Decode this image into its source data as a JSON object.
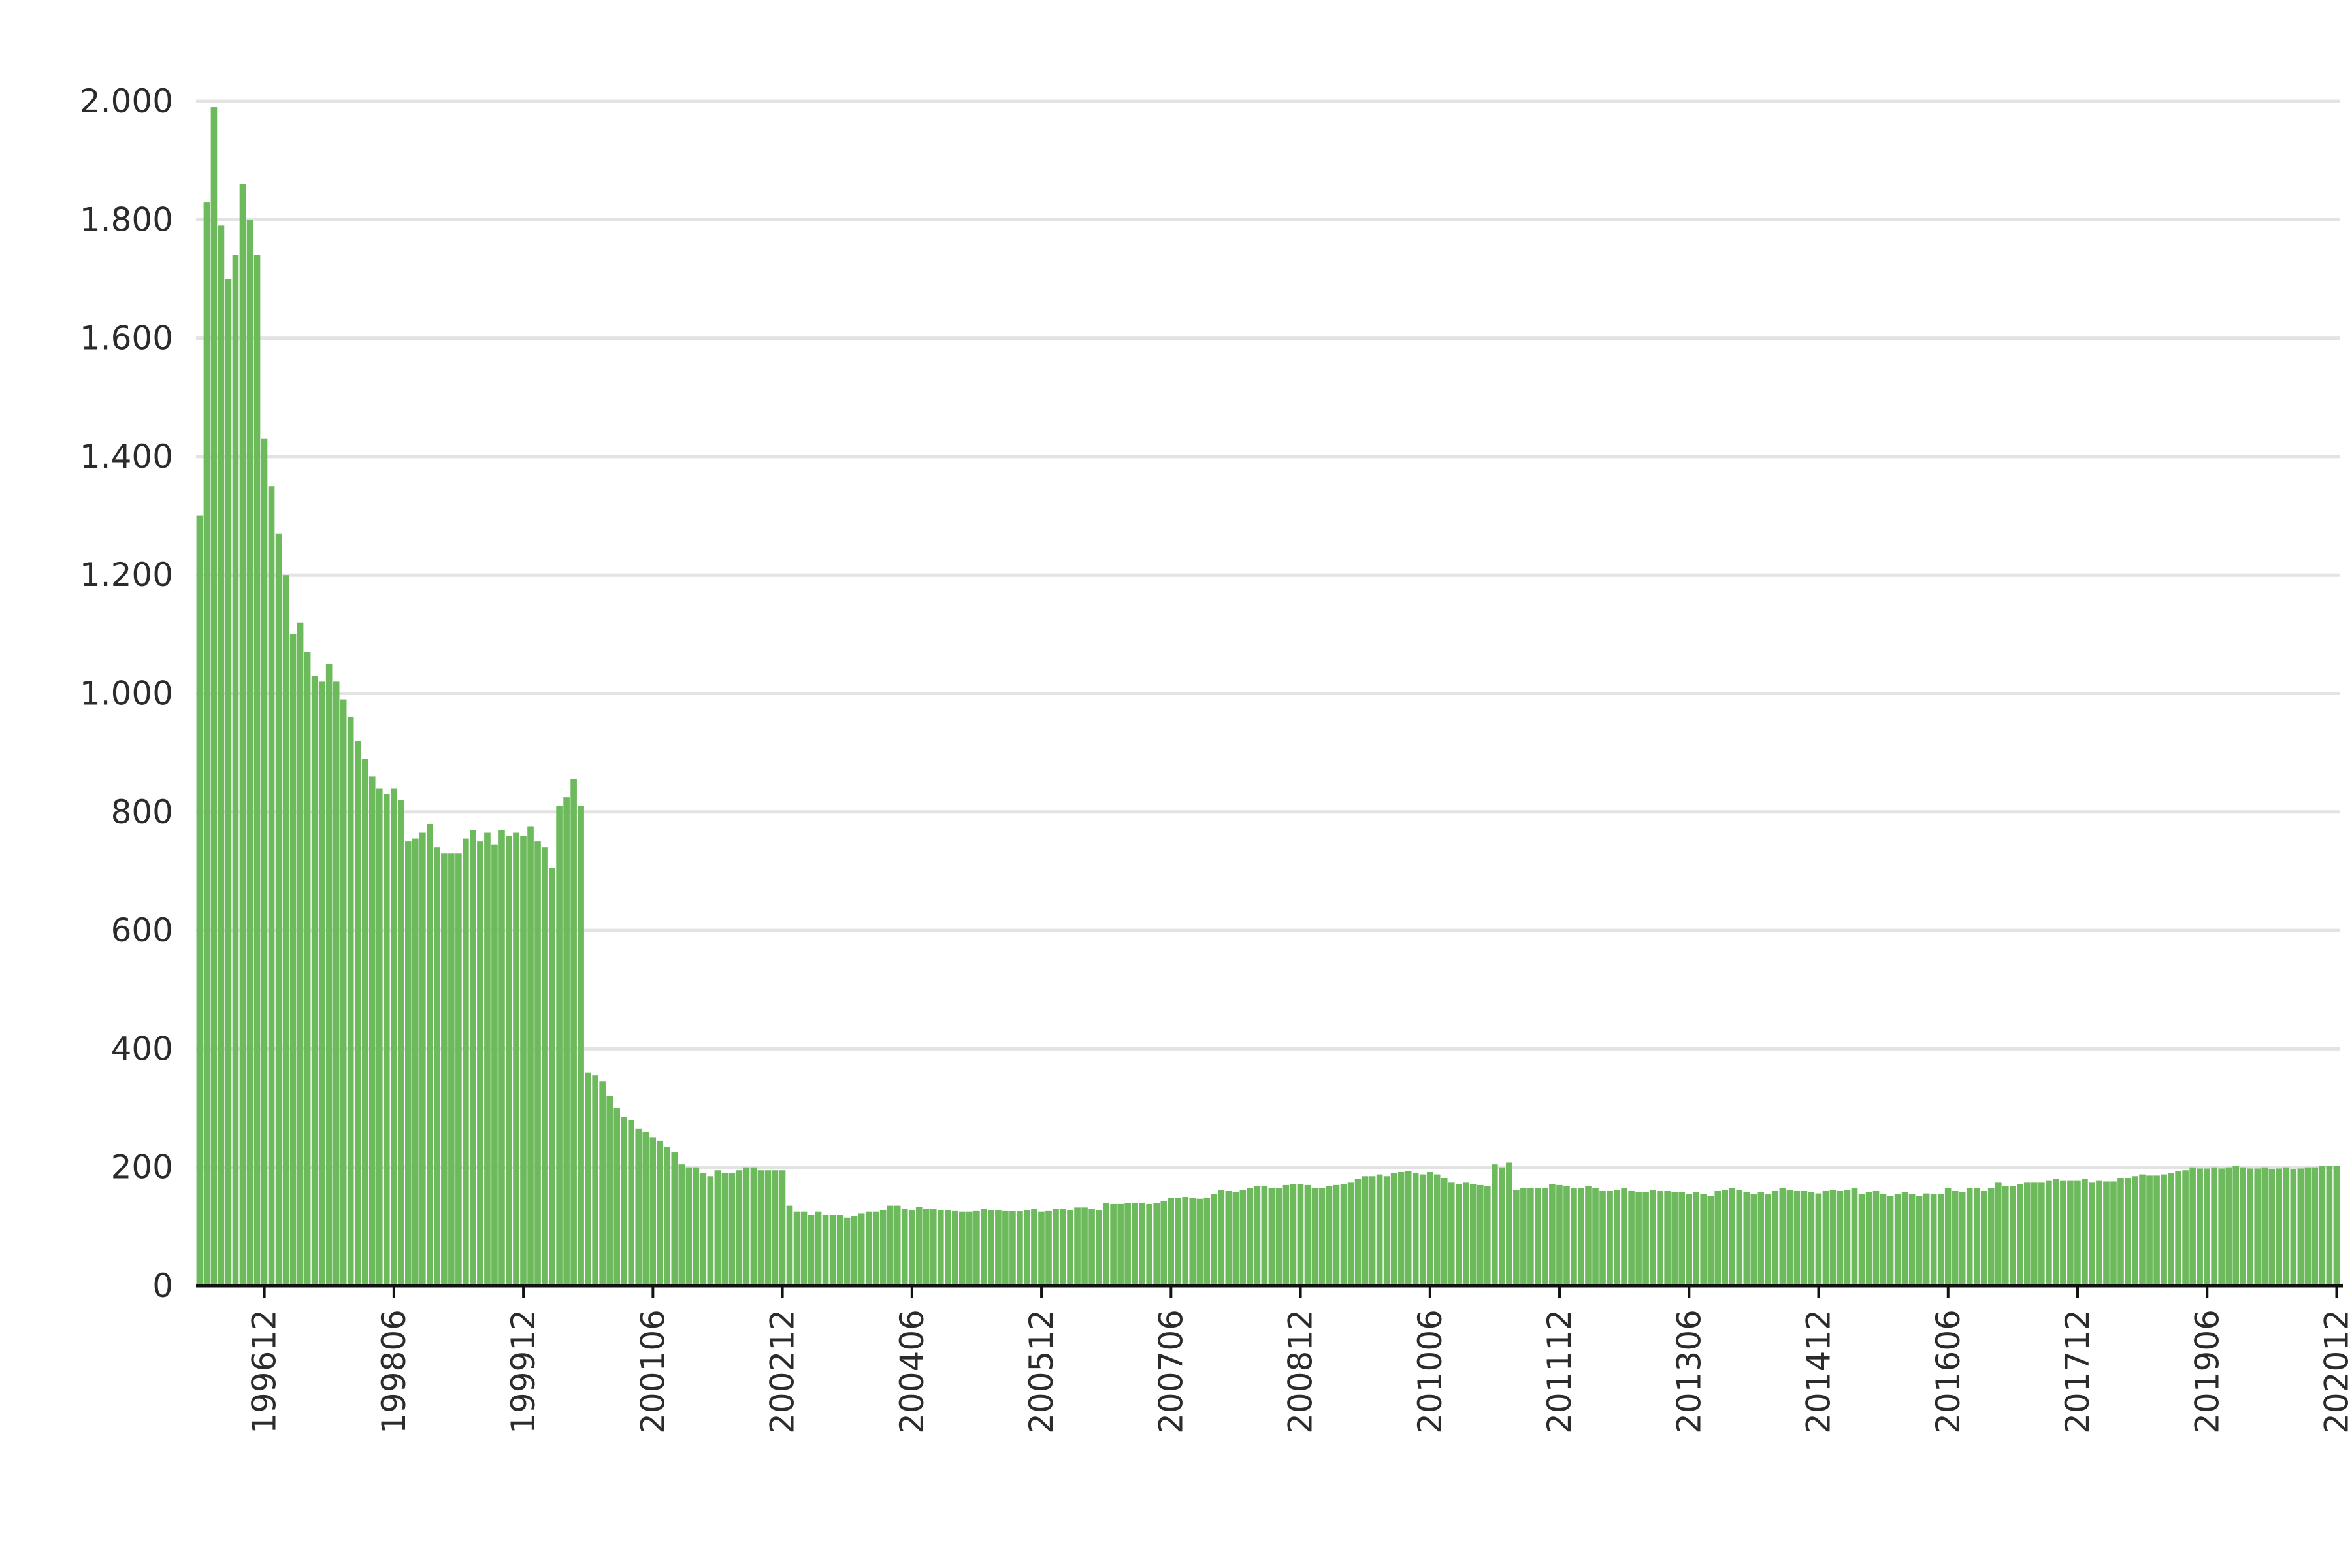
{
  "chart_data": {
    "type": "bar",
    "title": "",
    "xlabel": "",
    "ylabel": "",
    "ylim": [
      0,
      2000
    ],
    "y_ticks": [
      0,
      200,
      400,
      600,
      800,
      1000,
      1200,
      1400,
      1600,
      1800,
      2000
    ],
    "y_tick_labels": [
      "0",
      "200",
      "400",
      "600",
      "800",
      "1.000",
      "1.200",
      "1.400",
      "1.600",
      "1.800",
      "2.000"
    ],
    "x_tick_labels": [
      "199612",
      "199806",
      "199912",
      "200106",
      "200212",
      "200406",
      "200512",
      "200706",
      "200812",
      "201006",
      "201112",
      "201306",
      "201412",
      "201606",
      "201712",
      "201906",
      "202012"
    ],
    "grid": true,
    "legend": "none",
    "bar_color": "#6cba5c",
    "start_period": "199603",
    "end_period": "202012",
    "values": [
      1300,
      1830,
      1990,
      1790,
      1700,
      1740,
      1860,
      1800,
      1740,
      1430,
      1350,
      1270,
      1200,
      1100,
      1120,
      1070,
      1030,
      1020,
      1050,
      1020,
      990,
      960,
      920,
      890,
      860,
      840,
      830,
      840,
      820,
      750,
      755,
      765,
      780,
      740,
      730,
      730,
      730,
      755,
      770,
      750,
      765,
      745,
      770,
      760,
      765,
      760,
      775,
      750,
      740,
      705,
      810,
      825,
      855,
      810,
      360,
      355,
      345,
      320,
      300,
      285,
      280,
      265,
      260,
      250,
      245,
      235,
      225,
      205,
      200,
      200,
      190,
      185,
      195,
      190,
      190,
      195,
      200,
      200,
      195,
      195,
      195,
      195,
      135,
      125,
      125,
      120,
      125,
      120,
      120,
      120,
      115,
      118,
      122,
      125,
      125,
      128,
      135,
      135,
      130,
      128,
      133,
      130,
      130,
      128,
      128,
      127,
      125,
      125,
      127,
      130,
      128,
      128,
      127,
      126,
      126,
      128,
      130,
      125,
      127,
      130,
      130,
      128,
      132,
      132,
      130,
      128,
      140,
      138,
      138,
      140,
      140,
      139,
      138,
      140,
      143,
      148,
      148,
      150,
      148,
      147,
      148,
      155,
      162,
      160,
      158,
      162,
      165,
      168,
      168,
      165,
      165,
      170,
      172,
      172,
      170,
      165,
      165,
      168,
      170,
      172,
      175,
      180,
      185,
      185,
      188,
      185,
      190,
      192,
      194,
      190,
      188,
      192,
      188,
      182,
      175,
      172,
      175,
      172,
      170,
      168,
      205,
      200,
      208,
      162,
      165,
      165,
      165,
      165,
      172,
      170,
      168,
      165,
      165,
      168,
      165,
      160,
      160,
      162,
      165,
      160,
      158,
      158,
      162,
      160,
      160,
      158,
      158,
      155,
      158,
      155,
      152,
      160,
      162,
      165,
      162,
      158,
      155,
      158,
      155,
      160,
      165,
      162,
      160,
      160,
      158,
      156,
      160,
      162,
      160,
      162,
      165,
      155,
      158,
      160,
      155,
      152,
      155,
      158,
      155,
      152,
      156,
      155,
      155,
      165,
      160,
      158,
      165,
      165,
      160,
      165,
      175,
      168,
      168,
      172,
      175,
      175,
      175,
      178,
      180,
      178,
      178,
      178,
      180,
      175,
      178,
      176,
      176,
      182,
      182,
      185,
      188,
      186,
      186,
      188,
      190,
      193,
      195,
      200,
      198,
      198,
      200,
      198,
      200,
      202,
      200,
      198,
      198,
      200,
      197,
      198,
      200,
      197,
      198,
      200,
      200,
      202,
      202,
      203
    ]
  }
}
